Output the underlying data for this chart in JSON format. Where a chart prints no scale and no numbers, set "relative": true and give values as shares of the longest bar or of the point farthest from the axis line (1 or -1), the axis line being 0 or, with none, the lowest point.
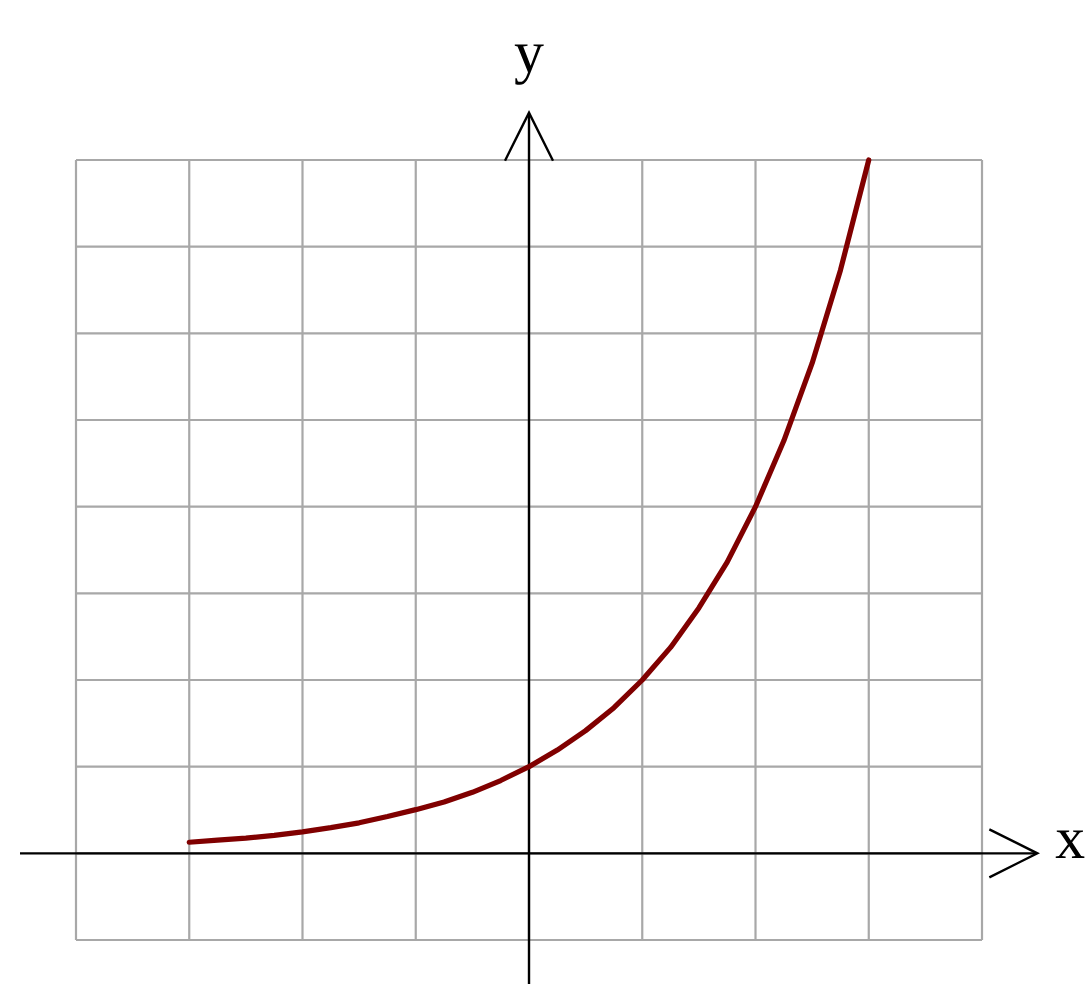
{
  "chart_data": {
    "type": "line",
    "xlabel": "x",
    "ylabel": "y",
    "relative": true,
    "grid": true,
    "categories": [
      null,
      null,
      null,
      null,
      null,
      null,
      null,
      null,
      null,
      null,
      null,
      null,
      null,
      null,
      null,
      null,
      null,
      null,
      null,
      null,
      null,
      null,
      null,
      null,
      null
    ],
    "series": [
      {
        "color": "#800000",
        "values": [
          0.016,
          0.019,
          0.022,
          0.026,
          0.031,
          0.037,
          0.044,
          0.053,
          0.063,
          0.074,
          0.088,
          0.105,
          0.125,
          0.149,
          0.177,
          0.21,
          0.25,
          0.297,
          0.354,
          0.42,
          0.5,
          0.595,
          0.707,
          0.841,
          1
        ]
      }
    ]
  }
}
